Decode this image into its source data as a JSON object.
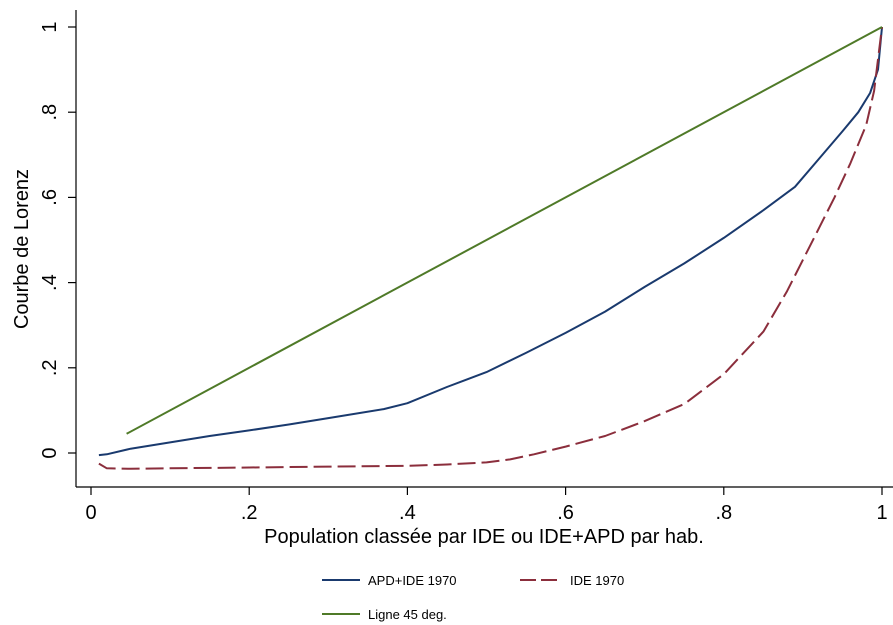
{
  "chart_data": {
    "type": "line",
    "title": "",
    "xlabel": "Population classée par IDE ou IDE+APD par hab.",
    "ylabel": "Courbe de Lorenz",
    "xlim": [
      0,
      1
    ],
    "ylim": [
      -0.08,
      1.02
    ],
    "xticks": [
      0,
      0.2,
      0.4,
      0.6,
      0.8,
      1
    ],
    "xtick_labels": [
      "0",
      ".2",
      ".4",
      ".6",
      ".8",
      "1"
    ],
    "yticks": [
      0,
      0.2,
      0.4,
      0.6,
      0.8,
      1
    ],
    "ytick_labels": [
      "0",
      ".2",
      ".4",
      ".6",
      ".8",
      "1"
    ],
    "grid": false,
    "legend_position": "bottom",
    "series": [
      {
        "name": "APD+IDE 1970",
        "color": "#1a3a6e",
        "dash": "solid",
        "x": [
          0.01,
          0.02,
          0.05,
          0.1,
          0.15,
          0.2,
          0.25,
          0.3,
          0.37,
          0.4,
          0.45,
          0.5,
          0.55,
          0.6,
          0.65,
          0.7,
          0.75,
          0.8,
          0.85,
          0.89,
          0.92,
          0.95,
          0.97,
          0.985,
          0.995,
          1.0
        ],
        "y": [
          -0.005,
          -0.003,
          0.01,
          0.025,
          0.04,
          0.053,
          0.067,
          0.082,
          0.103,
          0.117,
          0.155,
          0.19,
          0.235,
          0.282,
          0.332,
          0.39,
          0.445,
          0.505,
          0.57,
          0.625,
          0.69,
          0.755,
          0.8,
          0.845,
          0.9,
          1.0
        ]
      },
      {
        "name": "IDE 1970",
        "color": "#8b2e3c",
        "dash": "longdash",
        "x": [
          0.01,
          0.02,
          0.05,
          0.1,
          0.2,
          0.3,
          0.4,
          0.45,
          0.5,
          0.53,
          0.56,
          0.6,
          0.65,
          0.7,
          0.75,
          0.8,
          0.85,
          0.88,
          0.91,
          0.94,
          0.96,
          0.98,
          0.99,
          1.0
        ],
        "y": [
          -0.025,
          -0.036,
          -0.037,
          -0.036,
          -0.034,
          -0.032,
          -0.03,
          -0.027,
          -0.022,
          -0.015,
          -0.003,
          0.015,
          0.04,
          0.075,
          0.115,
          0.185,
          0.285,
          0.38,
          0.49,
          0.6,
          0.68,
          0.77,
          0.85,
          1.0
        ]
      },
      {
        "name": "Ligne 45 deg.",
        "color": "#4f7a28",
        "dash": "solid",
        "x": [
          0.045,
          1.0
        ],
        "y": [
          0.045,
          1.0
        ]
      }
    ]
  },
  "legend": [
    {
      "label": "APD+IDE 1970",
      "color": "#1a3a6e",
      "dash": "solid"
    },
    {
      "label": "IDE 1970",
      "color": "#8b2e3c",
      "dash": "longdash"
    },
    {
      "label": "Ligne 45 deg.",
      "color": "#4f7a28",
      "dash": "solid"
    }
  ]
}
